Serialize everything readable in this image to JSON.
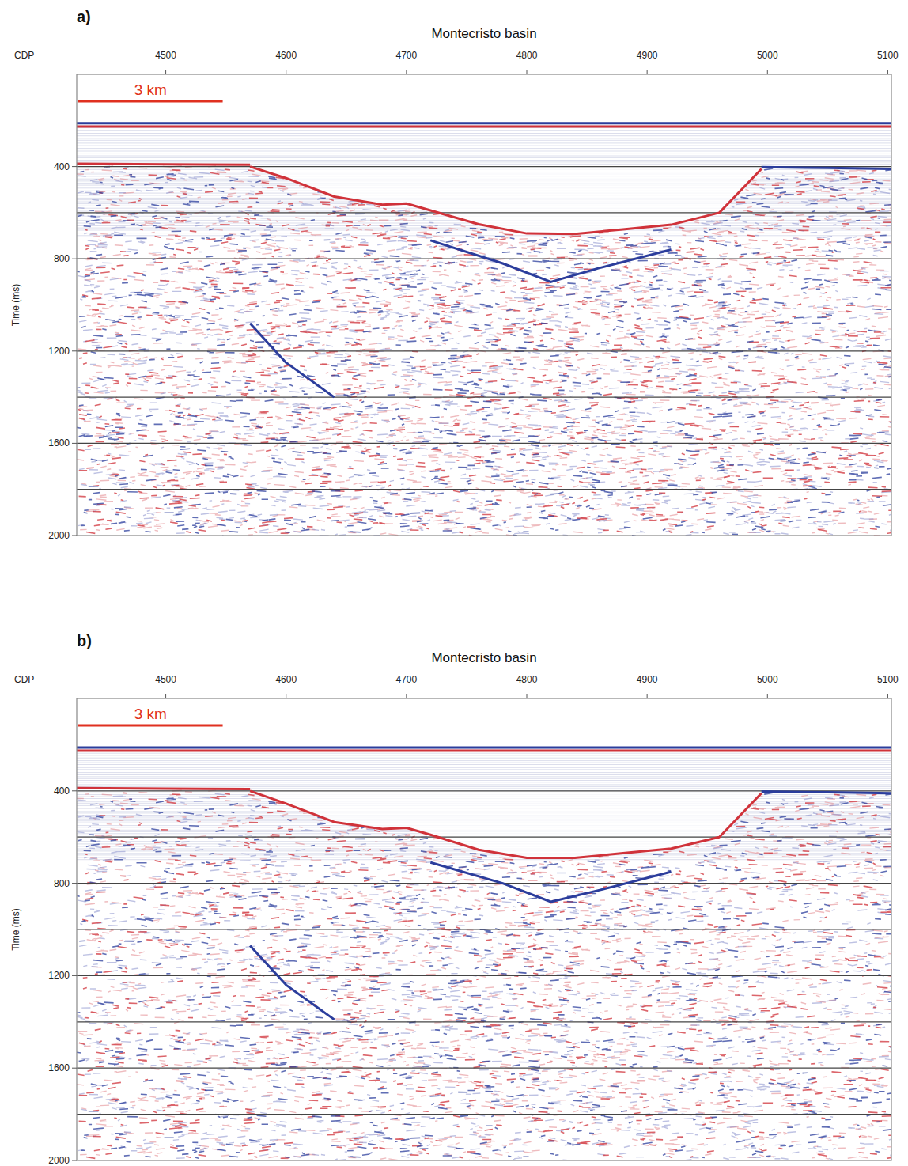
{
  "chart_data": [
    {
      "type": "seismic_section",
      "panel": "a)",
      "title": "Montecristo basin",
      "x_label": "CDP",
      "y_label": "Time (ms)",
      "xlim": [
        4426,
        5103
      ],
      "xticks": [
        4500,
        4600,
        4700,
        4800,
        4900,
        5000,
        5100
      ],
      "ylim": [
        0,
        2000
      ],
      "yticks": [
        400,
        800,
        1200,
        1600,
        2000
      ],
      "minor_yticks": [
        600,
        1000,
        1400,
        1800
      ],
      "grid": true,
      "scale_bar": {
        "label": "3 km",
        "length": 120
      },
      "series": [
        {
          "color": "#2b3d9c",
          "x": [
            4426,
            5103
          ],
          "values": [
            212,
            212
          ]
        },
        {
          "color": "#d0323a",
          "x": [
            4426,
            5103
          ],
          "values": [
            226,
            226
          ]
        },
        {
          "color": "#d0323a",
          "x": [
            4426,
            4500,
            4570
          ],
          "values": [
            388,
            390,
            392
          ]
        },
        {
          "color": "#2b3d9c",
          "x": [
            4995,
            5050,
            5103
          ],
          "values": [
            402,
            406,
            410
          ]
        },
        {
          "color": "#d0323a",
          "x": [
            4570,
            4600,
            4640,
            4680,
            4700,
            4720,
            4760,
            4800,
            4840,
            4880,
            4920,
            4960,
            4995
          ],
          "values": [
            400,
            450,
            530,
            565,
            560,
            590,
            650,
            690,
            692,
            672,
            652,
            600,
            410
          ]
        },
        {
          "color": "#2b3d9c",
          "x": [
            4720,
            4780,
            4820,
            4860,
            4920
          ],
          "values": [
            720,
            820,
            900,
            840,
            760
          ]
        },
        {
          "color": "#2b3d9c",
          "x": [
            4570,
            4600,
            4640
          ],
          "values": [
            1080,
            1250,
            1400
          ]
        }
      ]
    },
    {
      "type": "seismic_section",
      "panel": "b)",
      "title": "Montecristo basin",
      "x_label": "CDP",
      "y_label": "Time (ms)",
      "xlim": [
        4426,
        5103
      ],
      "xticks": [
        4500,
        4600,
        4700,
        4800,
        4900,
        5000,
        5100
      ],
      "ylim": [
        0,
        2000
      ],
      "yticks": [
        400,
        800,
        1200,
        1600,
        2000
      ],
      "minor_yticks": [
        600,
        1000,
        1400,
        1800
      ],
      "grid": true,
      "scale_bar": {
        "label": "3 km",
        "length": 120
      },
      "series": [
        {
          "color": "#2b3d9c",
          "x": [
            4426,
            5103
          ],
          "values": [
            212,
            212
          ]
        },
        {
          "color": "#d0323a",
          "x": [
            4426,
            5103
          ],
          "values": [
            226,
            226
          ]
        },
        {
          "color": "#d0323a",
          "x": [
            4426,
            4500,
            4570
          ],
          "values": [
            388,
            390,
            392
          ]
        },
        {
          "color": "#2b3d9c",
          "x": [
            4995,
            5050,
            5103
          ],
          "values": [
            402,
            406,
            410
          ]
        },
        {
          "color": "#d0323a",
          "x": [
            4570,
            4600,
            4640,
            4680,
            4700,
            4720,
            4760,
            4800,
            4840,
            4880,
            4920,
            4960,
            4995
          ],
          "values": [
            400,
            455,
            535,
            565,
            560,
            590,
            655,
            690,
            690,
            670,
            650,
            600,
            410
          ]
        },
        {
          "color": "#2b3d9c",
          "x": [
            4720,
            4780,
            4820,
            4860,
            4920
          ],
          "values": [
            710,
            800,
            880,
            830,
            750
          ]
        },
        {
          "color": "#2b3d9c",
          "x": [
            4570,
            4600,
            4640
          ],
          "values": [
            1070,
            1240,
            1390
          ]
        }
      ]
    }
  ]
}
